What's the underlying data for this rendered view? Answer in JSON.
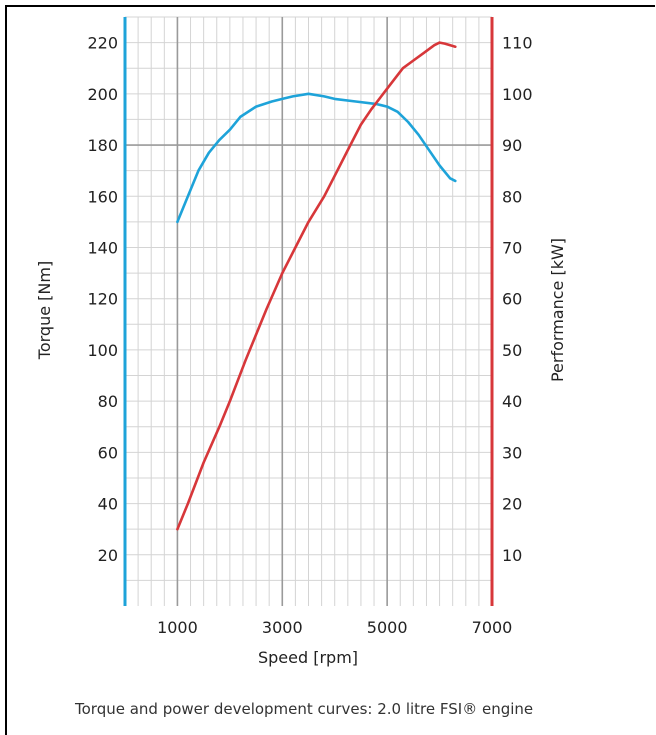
{
  "caption": "Torque and power development curves: 2.0 litre FSI® engine",
  "chart_data": {
    "type": "line",
    "title": "",
    "xlabel": "Speed [rpm]",
    "ylabel_left": "Torque [Nm]",
    "ylabel_right": "Performance [kW]",
    "xlim": [
      0,
      7000
    ],
    "ylim_left": [
      0,
      230
    ],
    "ylim_right": [
      0,
      115
    ],
    "x_ticks": [
      1000,
      3000,
      5000,
      7000
    ],
    "x_tick_labels": [
      "1000",
      "3000",
      "5000",
      "7000"
    ],
    "y_left_ticks": [
      20,
      40,
      60,
      80,
      100,
      120,
      140,
      160,
      180,
      200,
      220
    ],
    "y_left_tick_labels": [
      "20",
      "40",
      "60",
      "80",
      "100",
      "120",
      "140",
      "160",
      "180",
      "200",
      "220"
    ],
    "y_right_ticks": [
      10,
      20,
      30,
      40,
      50,
      60,
      70,
      80,
      90,
      100,
      110
    ],
    "y_right_tick_labels": [
      "10",
      "20",
      "30",
      "40",
      "50",
      "60",
      "70",
      "80",
      "90",
      "100",
      "110"
    ],
    "grid": true,
    "colors": {
      "torque": "#1ea3d9",
      "power": "#d7373a",
      "grid_minor": "#d4d4d4",
      "grid_major": "#9a9a9a"
    },
    "series": [
      {
        "axis": "left",
        "color": "#1ea3d9",
        "x": [
          1000,
          1200,
          1400,
          1600,
          1800,
          2000,
          2200,
          2500,
          2800,
          3000,
          3200,
          3500,
          3800,
          4000,
          4400,
          4800,
          5000,
          5200,
          5400,
          5600,
          5800,
          6000,
          6200,
          6300
        ],
        "y": [
          150,
          160,
          170,
          177,
          182,
          186,
          191,
          195,
          197,
          198,
          199,
          200,
          199,
          198,
          197,
          196,
          195,
          193,
          189,
          184,
          178,
          172,
          167,
          166
        ]
      },
      {
        "axis": "right",
        "color": "#d7373a",
        "x": [
          1000,
          1200,
          1500,
          1800,
          2000,
          2300,
          2500,
          2700,
          3000,
          3300,
          3500,
          3800,
          4000,
          4300,
          4500,
          4700,
          5000,
          5300,
          5500,
          5700,
          5900,
          6000,
          6100,
          6300
        ],
        "y": [
          15,
          20,
          28,
          35,
          40,
          48,
          53,
          58,
          65,
          71,
          75,
          80,
          84,
          90,
          94,
          97,
          101,
          105,
          106.5,
          108,
          109.5,
          110,
          109.8,
          109.2
        ]
      }
    ]
  }
}
